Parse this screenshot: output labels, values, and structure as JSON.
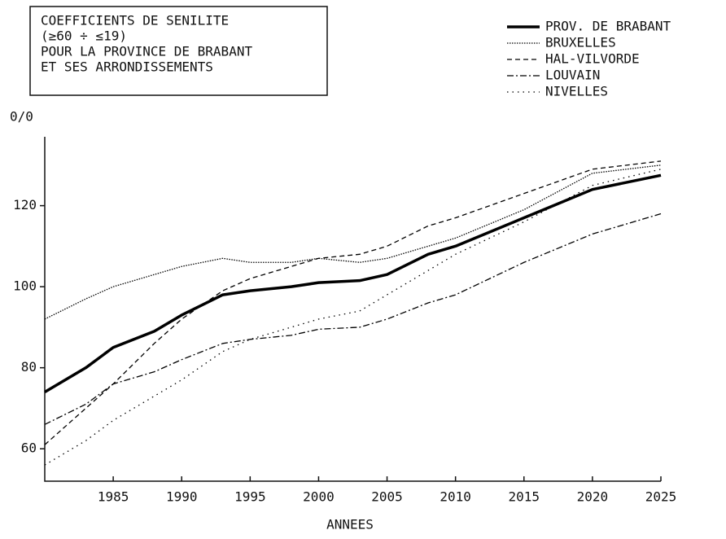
{
  "chart_data": {
    "type": "line",
    "title": [
      "COEFFICIENTS DE SENILITE",
      " (≥60 ÷ ≤19)",
      "POUR LA PROVINCE DE BRABANT",
      "ET SES ARRONDISSEMENTS"
    ],
    "y_label": "0/0",
    "x_label": "ANNEES",
    "x": [
      1980,
      1983,
      1985,
      1988,
      1990,
      1993,
      1995,
      1998,
      2000,
      2003,
      2005,
      2008,
      2010,
      2015,
      2020,
      2025
    ],
    "xlim": [
      1980,
      2025
    ],
    "xticks": [
      1985,
      1990,
      1995,
      2000,
      2005,
      2010,
      2015,
      2020,
      2025
    ],
    "ylim": [
      52,
      137
    ],
    "yticks": [
      60,
      80,
      100,
      120
    ],
    "legend": "top-right",
    "series": [
      {
        "name": "PROV. DE BRABANT",
        "color": "#000000",
        "style": "solid",
        "values": [
          74,
          80,
          85,
          89,
          93,
          98,
          99,
          100,
          101,
          101.5,
          103,
          108,
          110,
          117,
          124,
          127.5
        ]
      },
      {
        "name": "BRUXELLES",
        "color": "#000000",
        "style": "dotted",
        "values": [
          92,
          97,
          100,
          103,
          105,
          107,
          106,
          106,
          107,
          106,
          107,
          110,
          112,
          119,
          128,
          130
        ]
      },
      {
        "name": "HAL-VILVORDE",
        "color": "#000000",
        "style": "dashed",
        "values": [
          61,
          70,
          76,
          86,
          92,
          99,
          102,
          105,
          107,
          108,
          110,
          115,
          117,
          123,
          129,
          131
        ]
      },
      {
        "name": "LOUVAIN",
        "color": "#000000",
        "style": "dashdot",
        "values": [
          66,
          71,
          76,
          79,
          82,
          86,
          87,
          88,
          89.5,
          90,
          92,
          96,
          98,
          106,
          113,
          118
        ]
      },
      {
        "name": "NIVELLES",
        "color": "#000000",
        "style": "sparse",
        "values": [
          56,
          62,
          67,
          73,
          77,
          84,
          87,
          90,
          92,
          94,
          98,
          104,
          108,
          116,
          125,
          129
        ]
      }
    ]
  }
}
